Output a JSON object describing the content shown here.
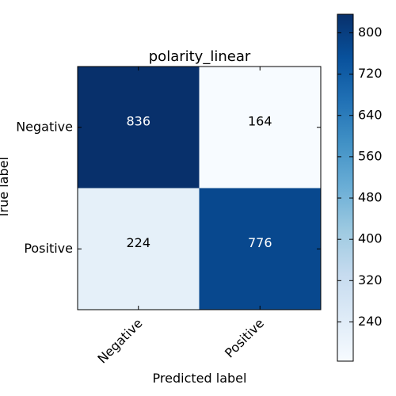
{
  "chart_data": {
    "type": "heatmap",
    "title": "polarity_linear",
    "xlabel": "Predicted label",
    "ylabel": "True label",
    "x_categories": [
      "Negative",
      "Positive"
    ],
    "y_categories": [
      "Negative",
      "Positive"
    ],
    "matrix": [
      [
        836,
        164
      ],
      [
        224,
        776
      ]
    ],
    "colormap": "Blues",
    "colorbar": {
      "min": 164,
      "max": 836,
      "ticks": [
        "240",
        "320",
        "400",
        "480",
        "560",
        "640",
        "720",
        "800"
      ]
    }
  }
}
